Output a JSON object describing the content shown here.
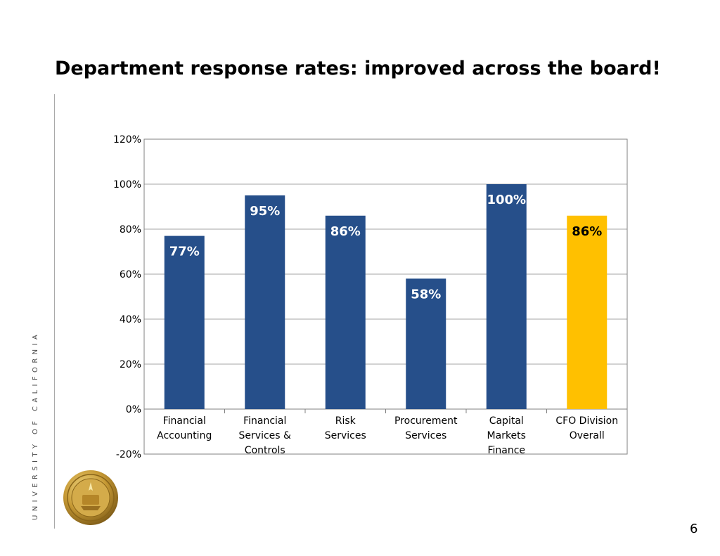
{
  "slide": {
    "title": "Department response rates:  improved across the board!",
    "side_label": "UNIVERSITY OF CALIFORNIA",
    "page_number": "6"
  },
  "colors": {
    "bar": "#264F8A",
    "highlight_bar": "#FFC000",
    "gridline": "#A6A6A6",
    "axis": "#808080"
  },
  "chart_data": {
    "type": "bar",
    "title": "",
    "xlabel": "",
    "ylabel": "",
    "categories": [
      [
        "Financial",
        "Accounting"
      ],
      [
        "Financial",
        "Services &",
        "Controls"
      ],
      [
        "Risk",
        "Services"
      ],
      [
        "Procurement",
        "Services"
      ],
      [
        "Capital",
        "Markets",
        "Finance"
      ],
      [
        "CFO Division",
        "Overall"
      ]
    ],
    "values": [
      77,
      95,
      86,
      58,
      100,
      86
    ],
    "data_labels": [
      "77%",
      "95%",
      "86%",
      "58%",
      "100%",
      "86%"
    ],
    "highlight_index": 5,
    "ylim": [
      -20,
      120
    ],
    "yticks": [
      -20,
      0,
      20,
      40,
      60,
      80,
      100,
      120
    ],
    "ytick_labels": [
      "-20%",
      "0%",
      "20%",
      "40%",
      "60%",
      "80%",
      "100%",
      "120%"
    ],
    "grid": true,
    "legend": "none"
  }
}
